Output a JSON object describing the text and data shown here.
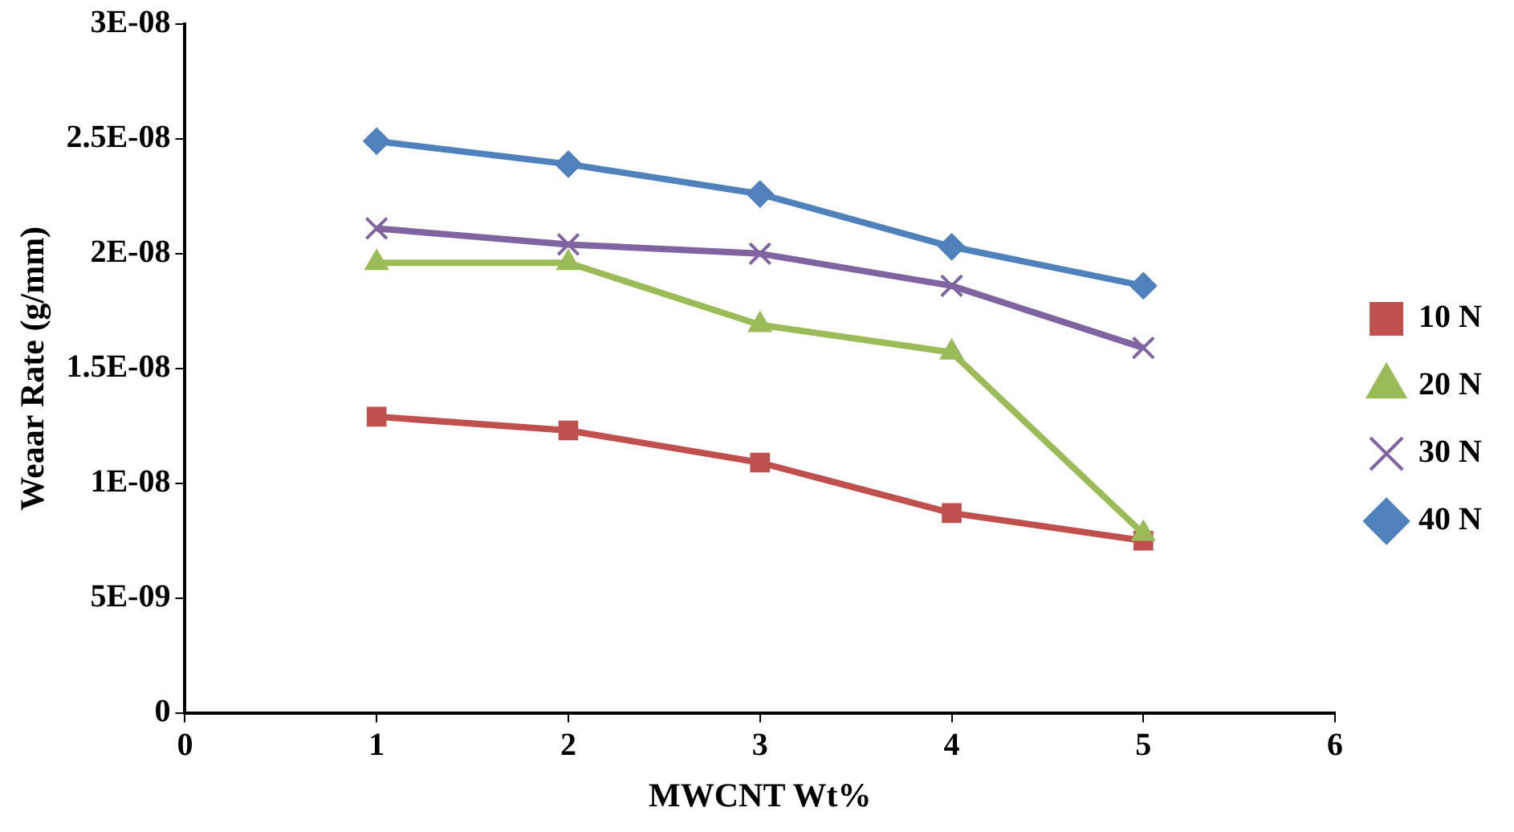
{
  "chart_data": {
    "type": "line",
    "xlabel": "MWCNT Wt%",
    "ylabel": "Weaar Rate (g/mm)",
    "x": [
      1,
      2,
      3,
      4,
      5
    ],
    "series": [
      {
        "name": "10 N",
        "color": "#c0504d",
        "marker": "square",
        "values": [
          1.29e-08,
          1.23e-08,
          1.09e-08,
          8.7e-09,
          7.5e-09
        ]
      },
      {
        "name": "20 N",
        "color": "#9bbb59",
        "marker": "triangle",
        "values": [
          1.96e-08,
          1.96e-08,
          1.69e-08,
          1.57e-08,
          7.8e-09
        ]
      },
      {
        "name": "30 N",
        "color": "#8064a2",
        "marker": "cross",
        "values": [
          2.11e-08,
          2.04e-08,
          2e-08,
          1.86e-08,
          1.59e-08
        ]
      },
      {
        "name": "40 N",
        "color": "#4f81bd",
        "marker": "diamond",
        "values": [
          2.49e-08,
          2.39e-08,
          2.26e-08,
          2.03e-08,
          1.86e-08
        ]
      }
    ],
    "xlim": [
      0,
      6
    ],
    "xticks": [
      0,
      1,
      2,
      3,
      4,
      5,
      6
    ],
    "ylim": [
      0,
      3e-08
    ],
    "yticks": [
      0,
      {
        "value": 5e-09,
        "label": "5E-09"
      },
      {
        "value": 1e-08,
        "label": "1E-08"
      },
      {
        "value": 1.5e-08,
        "label": "1.5E-08"
      },
      {
        "value": 2e-08,
        "label": "2E-08"
      },
      {
        "value": 2.5e-08,
        "label": "2.5E-08"
      },
      {
        "value": 3e-08,
        "label": "3E-08"
      }
    ],
    "grid": false,
    "legend": "right",
    "line_style": "solid"
  }
}
